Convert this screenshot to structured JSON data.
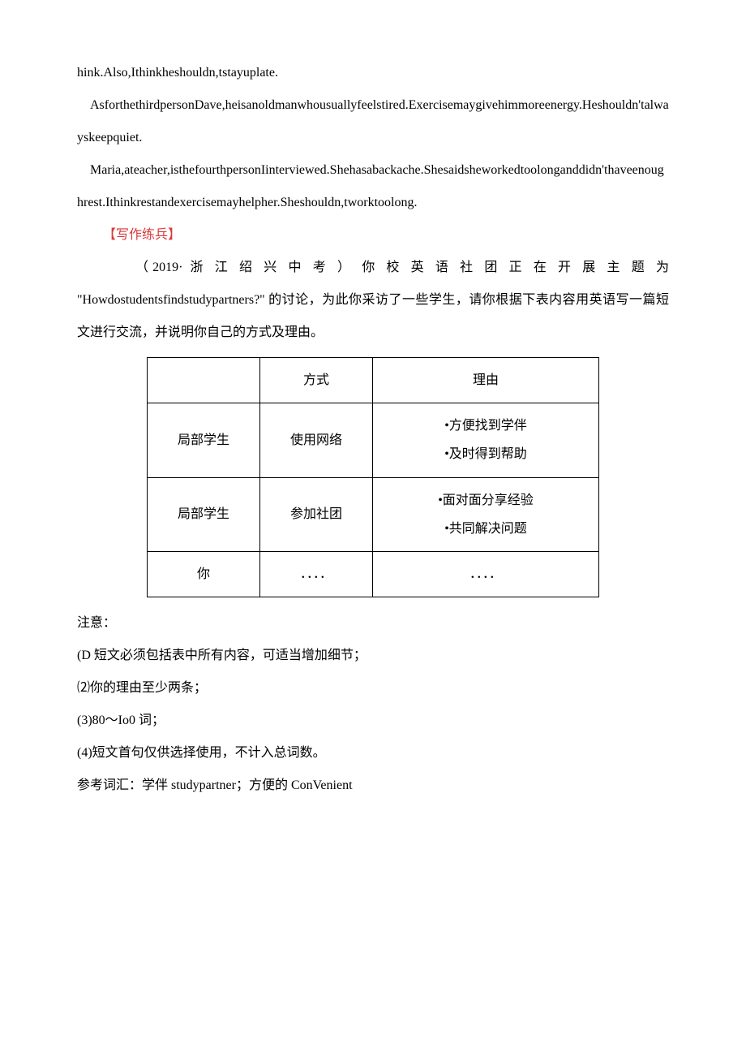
{
  "paragraphs": {
    "p1": "hink.Also,Ithinkheshouldn,tstayuplate.",
    "p2": "AsforthethirdpersonDave,heisanoldmanwhousuallyfeelstired.Exercisemaygivehimmoreenergy.Heshouldn'talwayskeepquiet.",
    "p3": "Maria,ateacher,isthefourthpersonIinterviewed.Shehasabackache.Shesaidsheworkedtoolonganddidn'thaveenoughrest.Ithinkrestandexercisemayhelpher.Sheshouldn,tworktoolong."
  },
  "section_label": "【写作练兵】",
  "prompt": {
    "line1": "（2019· 浙 江 绍 兴 中 考 ） 你 校 英 语 社 团 正 在 开 展 主 题 为",
    "line2": "\"Howdostudentsfindstudypartners?\" 的讨论，为此你采访了一些学生，请你根据下表内容用英语写一篇短文进行交流，并说明你自己的方式及理由。"
  },
  "table": {
    "header": {
      "col1": "",
      "col2": "方式",
      "col3": "理由"
    },
    "col_widths": [
      "110px",
      "110px",
      "250px"
    ],
    "rows": [
      {
        "c1": "局部学生",
        "c2": "使用网络",
        "c3": "•方便找到学伴\n•及时得到帮助"
      },
      {
        "c1": "局部学生",
        "c2": "参加社团",
        "c3": "•面对面分享经验\n•共同解决问题"
      },
      {
        "c1": "你",
        "c2": "．．．．",
        "c3": "．．．．"
      }
    ]
  },
  "notes": {
    "n0": "注意：",
    "n1": "(D 短文必须包括表中所有内容，可适当增加细节；",
    "n2": "⑵你的理由至少两条；",
    "n3": "(3)80～Io0 词；",
    "n4": "(4)短文首句仅供选择使用，不计入总词数。",
    "n5": "参考词汇：学伴 studypartner；方便的 ConVenient"
  },
  "colors": {
    "text": "#000000",
    "accent": "#d93a3a",
    "background": "#ffffff",
    "border": "#000000"
  }
}
